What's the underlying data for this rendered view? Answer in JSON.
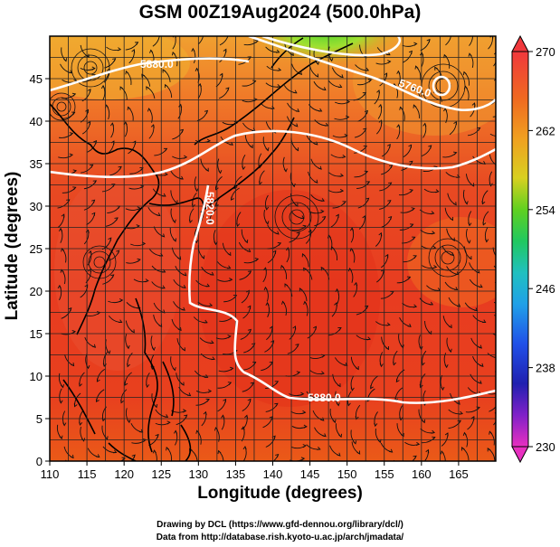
{
  "title": "GSM 00Z19Aug2024 (500.0hPa)",
  "xaxis": {
    "label": "Longitude (degrees)",
    "range": [
      110,
      170
    ],
    "ticks": [
      "110",
      "115",
      "120",
      "125",
      "130",
      "135",
      "140",
      "145",
      "150",
      "155",
      "160",
      "165"
    ],
    "tick_values": [
      110,
      115,
      120,
      125,
      130,
      135,
      140,
      145,
      150,
      155,
      160,
      165
    ]
  },
  "yaxis": {
    "label": "Latitude  (degrees)",
    "range": [
      0,
      50
    ],
    "ticks": [
      "0",
      "5",
      "10",
      "15",
      "20",
      "25",
      "30",
      "35",
      "40",
      "45"
    ],
    "tick_values": [
      0,
      5,
      10,
      15,
      20,
      25,
      30,
      35,
      40,
      45
    ]
  },
  "colorbar": {
    "min": 230,
    "max": 270,
    "labels": [
      "270",
      "262",
      "254",
      "246",
      "238",
      "230"
    ],
    "label_values": [
      270,
      262,
      254,
      246,
      238,
      230
    ]
  },
  "contours": [
    {
      "label": "5820.0",
      "level": 5820
    },
    {
      "label": "5880.0",
      "level": 5880
    },
    {
      "label": "5760.0",
      "level": 5760
    },
    {
      "label": "5820.0",
      "level": 5820
    },
    {
      "label": "5880.0",
      "level": 5880
    }
  ],
  "credits": {
    "line1": "Drawing by DCL (https://www.gfd-dennou.org/library/dcl/)",
    "line2": "Data from http://database.rish.kyoto-u.ac.jp/arch/jmadata/"
  }
}
